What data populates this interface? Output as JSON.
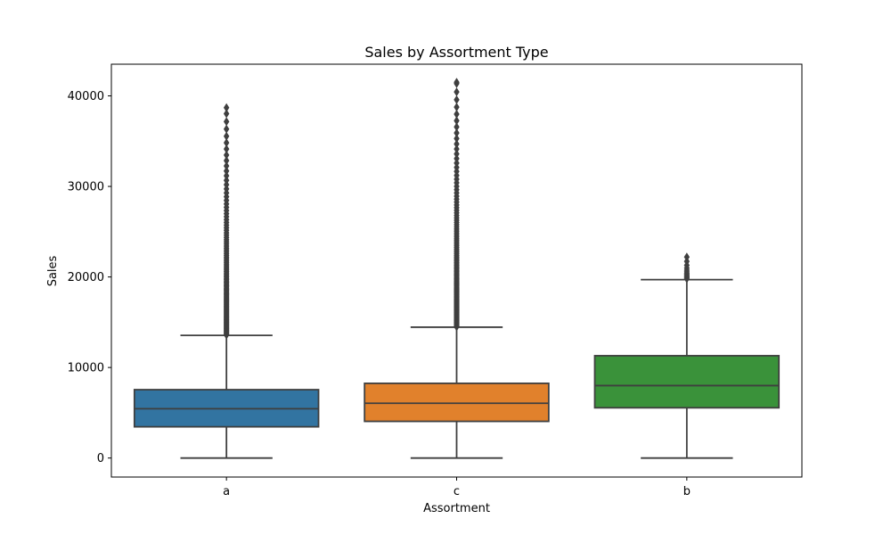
{
  "chart_data": {
    "type": "box",
    "title": "Sales by Assortment Type",
    "xlabel": "Assortment",
    "ylabel": "Sales",
    "categories": [
      "a",
      "c",
      "b"
    ],
    "ylim": [
      -2100,
      43500
    ],
    "yticks": [
      0,
      10000,
      20000,
      30000,
      40000
    ],
    "grid": false,
    "colors": [
      "#3274a1",
      "#e1812c",
      "#3a923a"
    ],
    "boxes": [
      {
        "category": "a",
        "min": 0,
        "q1": 3450,
        "median": 5450,
        "q3": 7550,
        "max": 13550,
        "outliers_from": 13600,
        "outliers_to": 38700
      },
      {
        "category": "c",
        "min": 0,
        "q1": 4050,
        "median": 6050,
        "q3": 8250,
        "max": 14450,
        "outliers_from": 14500,
        "outliers_to": 41500
      },
      {
        "category": "b",
        "min": 0,
        "q1": 5550,
        "median": 8000,
        "q3": 11300,
        "max": 19700,
        "outliers_from": 19800,
        "outliers_to": 22200
      }
    ]
  }
}
